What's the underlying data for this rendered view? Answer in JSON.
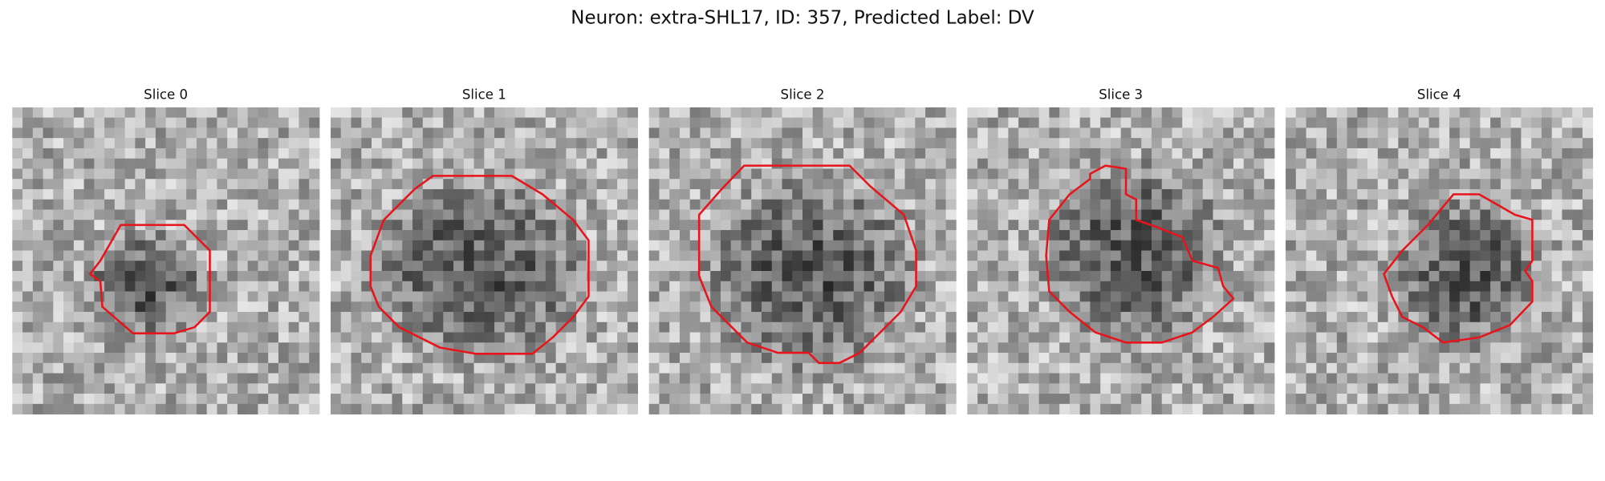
{
  "figure": {
    "title": "Neuron: extra-SHL17, ID: 357, Predicted Label: DV",
    "panels": [
      {
        "label": "Slice 0"
      },
      {
        "label": "Slice 1"
      },
      {
        "label": "Slice 2"
      },
      {
        "label": "Slice 3"
      },
      {
        "label": "Slice 4"
      }
    ]
  }
}
